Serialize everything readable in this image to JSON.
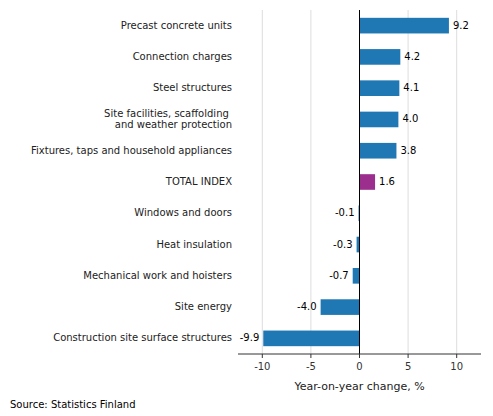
{
  "chart_data": {
    "type": "bar",
    "orientation": "horizontal",
    "categories": [
      "Construction site surface structures",
      "Site energy",
      "Mechanical work and hoisters",
      "Heat insulation",
      "Windows and doors",
      "TOTAL INDEX",
      "Fixtures, taps and household appliances",
      "Site facilities, scaffolding and weather protection",
      "Steel structures",
      "Connection charges",
      "Precast concrete units"
    ],
    "values": [
      -9.9,
      -4.0,
      -0.7,
      -0.3,
      -0.1,
      1.6,
      3.8,
      4.0,
      4.1,
      4.2,
      9.2
    ],
    "value_labels": [
      "-9.9",
      "-4.0",
      "-0.7",
      "-0.3",
      "-0.1",
      "1.6",
      "3.8",
      "4.0",
      "4.1",
      "4.2",
      "9.2"
    ],
    "colors": [
      "#1f78b4",
      "#1f78b4",
      "#1f78b4",
      "#1f78b4",
      "#1f78b4",
      "#9c2f8e",
      "#1f78b4",
      "#1f78b4",
      "#1f78b4",
      "#1f78b4",
      "#1f78b4"
    ],
    "data_labels": true,
    "xlabel": "Year-on-year change, %",
    "xlim": [
      -12.5,
      12.5
    ],
    "xticks": [
      -10,
      -5,
      0,
      5,
      10
    ],
    "grid": true,
    "source": "Source: Statistics Finland"
  }
}
